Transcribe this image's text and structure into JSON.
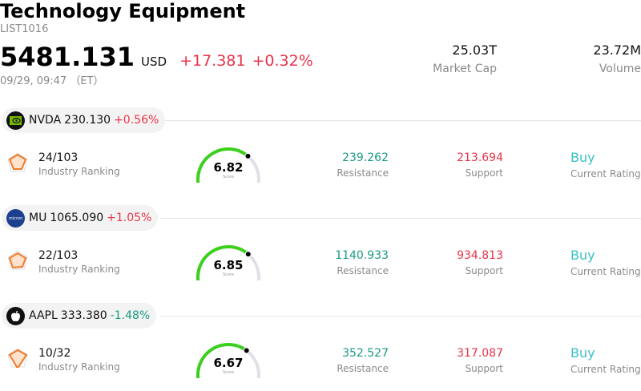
{
  "header": {
    "title": "Technology Equipment",
    "code": "LIST1016",
    "price": "5481.131",
    "currency": "USD",
    "change": "+17.381",
    "change_pct": "+0.32%",
    "time": "09/29, 09:47 （ET）"
  },
  "stats": {
    "market_cap_value": "25.03T",
    "market_cap_label": "Market Cap",
    "volume_value": "23.72M",
    "volume_label": "Volume"
  },
  "labels": {
    "industry_ranking": "Industry Ranking",
    "score": "Score",
    "resistance": "Resistance",
    "support": "Support",
    "current_rating": "Current Rating"
  },
  "colors": {
    "up": "#e8334a",
    "down": "#1a9a82",
    "gauge_fill": "#3cd01e",
    "gauge_track": "#e0e0e6",
    "rating": "#3cc0c8",
    "rank_icon": "#f07a2a"
  },
  "stocks": [
    {
      "ticker": "NVDA",
      "price": "230.130",
      "change": "+0.56%",
      "direction": "up",
      "logo_icon": "nvidia-logo-icon",
      "ranking": "24/103",
      "score": "6.82",
      "score_fraction": 0.682,
      "resistance": "239.262",
      "support": "213.694",
      "rating": "Buy"
    },
    {
      "ticker": "MU",
      "price": "1065.090",
      "change": "+1.05%",
      "direction": "up",
      "logo_icon": "micron-logo-icon",
      "ranking": "22/103",
      "score": "6.85",
      "score_fraction": 0.685,
      "resistance": "1140.933",
      "support": "934.813",
      "rating": "Buy"
    },
    {
      "ticker": "AAPL",
      "price": "333.380",
      "change": "-1.48%",
      "direction": "down",
      "logo_icon": "apple-logo-icon",
      "ranking": "10/32",
      "score": "6.67",
      "score_fraction": 0.667,
      "resistance": "352.527",
      "support": "317.087",
      "rating": "Buy"
    }
  ]
}
